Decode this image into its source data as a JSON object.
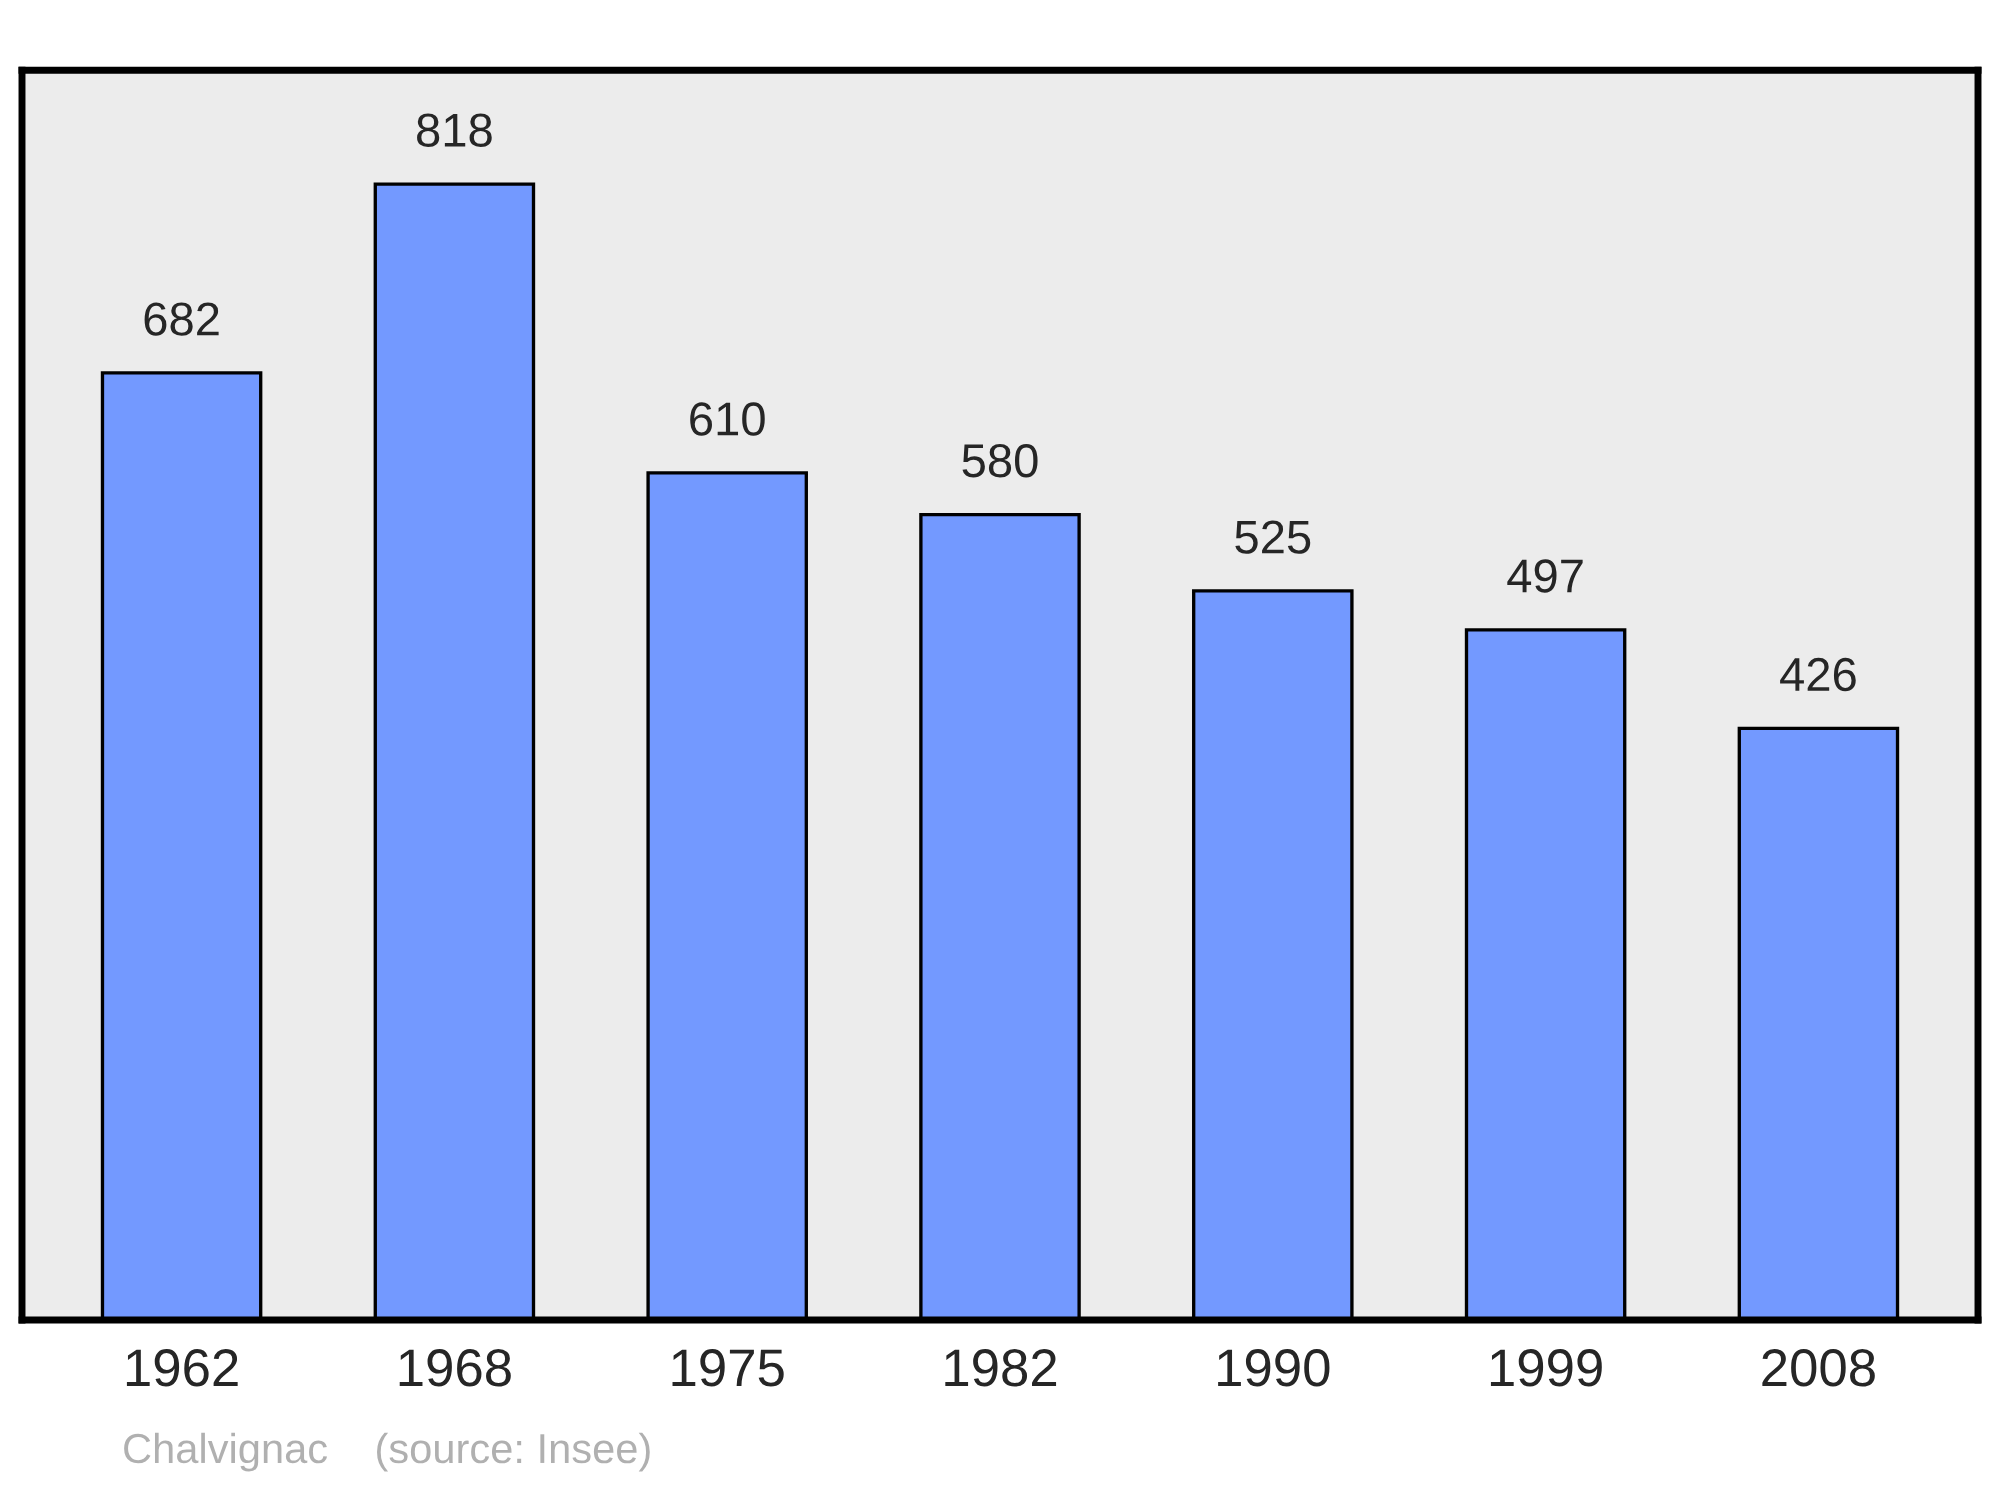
{
  "chart_data": {
    "type": "bar",
    "categories": [
      "1962",
      "1968",
      "1975",
      "1982",
      "1990",
      "1999",
      "2008"
    ],
    "values": [
      682,
      818,
      610,
      580,
      525,
      497,
      426
    ],
    "color": "#7399ff",
    "ylim": [
      0,
      900
    ],
    "tick_labels": "x",
    "data_labels": true,
    "grid": false,
    "annotations": [
      "Chalvignac    (source: Insee)"
    ]
  }
}
